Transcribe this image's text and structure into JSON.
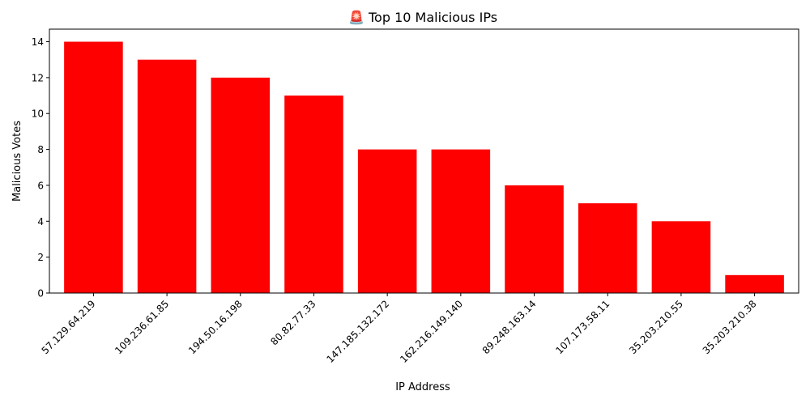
{
  "chart_data": {
    "type": "bar",
    "title": "🚨 Top 10 Malicious IPs",
    "xlabel": "IP Address",
    "ylabel": "Malicious Votes",
    "categories": [
      "57.129.64.219",
      "109.236.61.85",
      "194.50.16.198",
      "80.82.77.33",
      "147.185.132.172",
      "162.216.149.140",
      "89.248.163.14",
      "107.173.58.11",
      "35.203.210.55",
      "35.203.210.38"
    ],
    "values": [
      14,
      13,
      12,
      11,
      8,
      8,
      6,
      5,
      4,
      1
    ],
    "ylim": [
      0,
      14.7
    ],
    "yticks": [
      0,
      2,
      4,
      6,
      8,
      10,
      12,
      14
    ],
    "grid": false,
    "bar_color": "#ff0000"
  }
}
